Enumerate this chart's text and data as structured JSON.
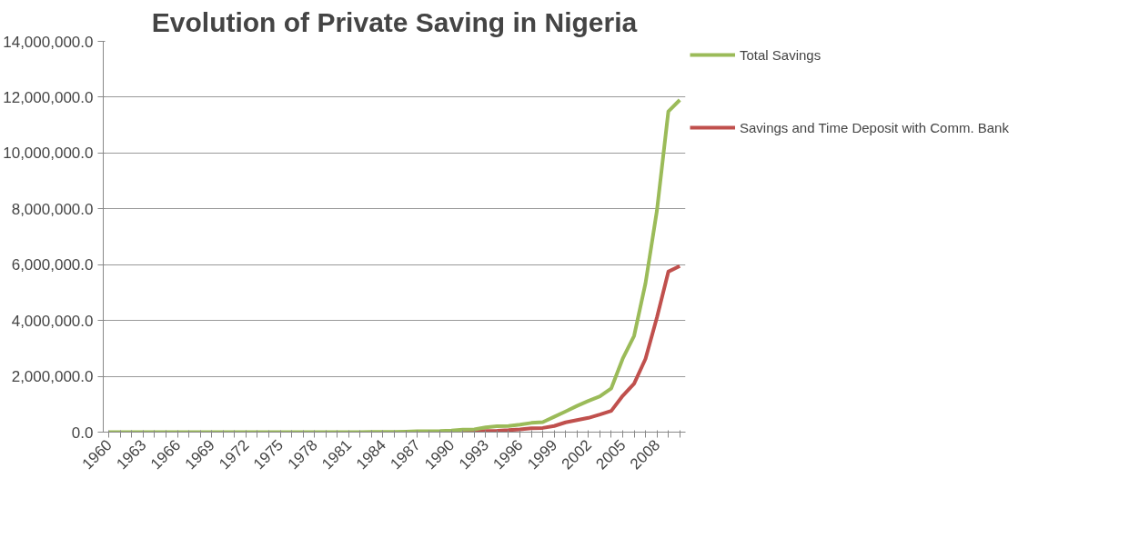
{
  "chart_data": {
    "type": "line",
    "title": "Evolution of Private Saving in Nigeria",
    "categories": [
      "1960",
      null,
      null,
      "1963",
      null,
      null,
      "1966",
      null,
      null,
      "1969",
      null,
      null,
      "1972",
      null,
      null,
      "1975",
      null,
      null,
      "1978",
      null,
      null,
      "1981",
      null,
      null,
      "1984",
      null,
      null,
      "1987",
      null,
      null,
      "1990",
      null,
      null,
      "1993",
      null,
      null,
      "1996",
      null,
      null,
      "1999",
      null,
      null,
      "2002",
      null,
      null,
      "2005",
      null,
      null,
      "2008",
      null,
      null
    ],
    "series": [
      {
        "name": "Total Savings",
        "color": "#9bbb59",
        "values": [
          0,
          0,
          0,
          0,
          0,
          0,
          0,
          0,
          0,
          0,
          0,
          0,
          0,
          0,
          0,
          0,
          0,
          0,
          0,
          0,
          0,
          0,
          0,
          10000,
          10000,
          10000,
          20000,
          30000,
          30000,
          40000,
          60000,
          90000,
          100000,
          170000,
          210000,
          220000,
          270000,
          330000,
          360000,
          550000,
          740000,
          940000,
          1120000,
          1280000,
          1570000,
          2630000,
          3450000,
          5340000,
          7940000,
          11490000,
          11900000
        ]
      },
      {
        "name": "Savings and Time Deposit with Comm. Bank",
        "color": "#c0504d",
        "values": [
          null,
          null,
          null,
          null,
          null,
          null,
          null,
          null,
          null,
          null,
          null,
          null,
          null,
          null,
          null,
          null,
          null,
          null,
          null,
          null,
          null,
          null,
          null,
          null,
          null,
          null,
          null,
          null,
          null,
          null,
          null,
          20000,
          30000,
          40000,
          50000,
          70000,
          100000,
          140000,
          150000,
          220000,
          350000,
          430000,
          510000,
          630000,
          760000,
          1300000,
          1740000,
          2630000,
          4110000,
          5750000,
          5950000
        ]
      }
    ],
    "ylim": [
      0,
      14000000
    ],
    "yticks": [
      {
        "value": 0,
        "label": "0.0"
      },
      {
        "value": 2000000,
        "label": "2,000,000.0"
      },
      {
        "value": 4000000,
        "label": "4,000,000.0"
      },
      {
        "value": 6000000,
        "label": "6,000,000.0"
      },
      {
        "value": 8000000,
        "label": "8,000,000.0"
      },
      {
        "value": 10000000,
        "label": "10,000,000.0"
      },
      {
        "value": 12000000,
        "label": "12,000,000.0"
      },
      {
        "value": 14000000,
        "label": "14,000,000.0"
      }
    ],
    "grid": "y",
    "legend": "right",
    "marker": "none",
    "line_style": "solid"
  }
}
